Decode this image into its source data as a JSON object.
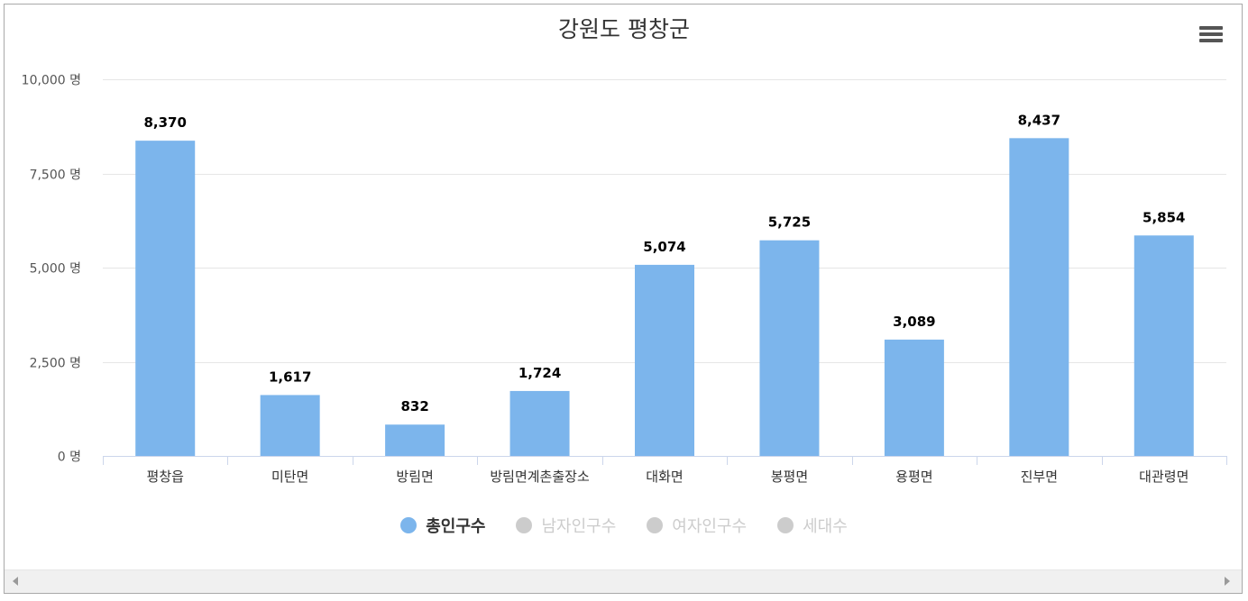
{
  "chart_data": {
    "type": "bar",
    "title": "강원도 평창군",
    "categories": [
      "평창읍",
      "미탄면",
      "방림면",
      "방림면계촌출장소",
      "대화면",
      "봉평면",
      "용평면",
      "진부면",
      "대관령면"
    ],
    "series": [
      {
        "name": "총인구수",
        "values": [
          8370,
          1617,
          832,
          1724,
          5074,
          5725,
          3089,
          8437,
          5854
        ],
        "color": "#7cb5ec",
        "visible": true
      }
    ],
    "data_labels": [
      "8,370",
      "1,617",
      "832",
      "1,724",
      "5,074",
      "5,725",
      "3,089",
      "8,437",
      "5,854"
    ],
    "y_ticks": [
      0,
      2500,
      5000,
      7500,
      10000
    ],
    "y_tick_labels": [
      "0 명",
      "2,500 명",
      "5,000 명",
      "7,500 명",
      "10,000 명"
    ],
    "ylim": [
      0,
      10000
    ],
    "xlabel": "",
    "ylabel": "",
    "grid": true,
    "legend_position": "bottom-center"
  },
  "legend": {
    "items": [
      {
        "label": "총인구수",
        "active": true,
        "color": "#7cb5ec"
      },
      {
        "label": "남자인구수",
        "active": false,
        "color": "#cccccc"
      },
      {
        "label": "여자인구수",
        "active": false,
        "color": "#cccccc"
      },
      {
        "label": "세대수",
        "active": false,
        "color": "#cccccc"
      }
    ]
  },
  "icons": {
    "menu": "hamburger-menu-icon",
    "scroll_left": "arrow-left-icon",
    "scroll_right": "arrow-right-icon"
  },
  "colors": {
    "bar": "#7cb5ec",
    "grid": "#e6e6e6",
    "axis": "#ccd6eb",
    "text": "#333333",
    "inactive": "#cccccc"
  }
}
